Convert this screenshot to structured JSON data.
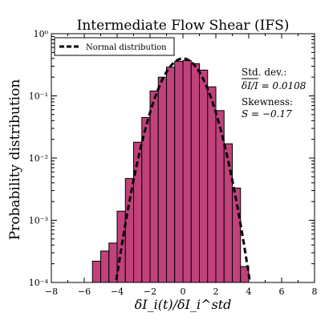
{
  "chart_data": {
    "type": "bar",
    "title": "Intermediate Flow Shear (IFS)",
    "xlabel": "δI_i(t)/δI_i^std",
    "ylabel": "Probability distribution",
    "xlim": [
      -8,
      8
    ],
    "ylim": [
      0.0001,
      1
    ],
    "yscale": "log",
    "grid": false,
    "legend_position": "top-left",
    "x_ticks": [
      "−8",
      "−6",
      "−4",
      "−2",
      "0",
      "2",
      "4",
      "6",
      "8"
    ],
    "y_ticks": [
      {
        "value": 0.0001,
        "label": "10⁻⁴"
      },
      {
        "value": 0.001,
        "label": "10⁻³"
      },
      {
        "value": 0.01,
        "label": "10⁻²"
      },
      {
        "value": 0.1,
        "label": "10⁻¹"
      },
      {
        "value": 1,
        "label": "10⁰"
      }
    ],
    "bar_color": "#c0417b",
    "bin_width": 0.5,
    "bin_left_edges": [
      -5.5,
      -5.0,
      -4.5,
      -4.0,
      -3.5,
      -3.0,
      -2.5,
      -2.0,
      -1.5,
      -1.0,
      -0.5,
      0.0,
      0.5,
      1.0,
      1.5,
      2.0,
      2.5,
      3.0,
      3.5
    ],
    "values": [
      0.00022,
      0.00032,
      0.00043,
      0.0014,
      0.0047,
      0.018,
      0.045,
      0.12,
      0.2,
      0.29,
      0.36,
      0.37,
      0.33,
      0.26,
      0.14,
      0.058,
      0.017,
      0.0033,
      0.00018
    ],
    "series": [
      {
        "name": "Normal distribution",
        "style": "dashed",
        "color": "#000000",
        "mean": 0.0,
        "std": 1.0
      }
    ],
    "annotations": {
      "std_label": "Std. dev.:",
      "std_formula": "δI/I = 0.0108",
      "skew_label": "Skewness:",
      "skew_formula": "S = −0.17"
    }
  }
}
